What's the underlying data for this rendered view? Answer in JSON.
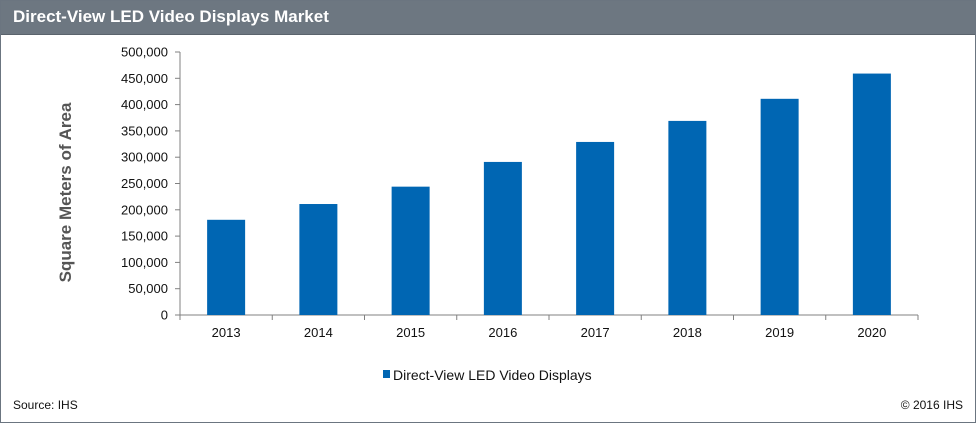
{
  "header": {
    "title": "Direct-View LED Video Displays Market"
  },
  "footer": {
    "source": "Source: IHS",
    "copyright": "© 2016 IHS"
  },
  "colors": {
    "bar": "#0066b3",
    "title_bar": "#6d7781"
  },
  "chart_data": {
    "type": "bar",
    "title": "Direct-View LED Video Displays Market",
    "xlabel": "",
    "ylabel": "Square Meters of Area",
    "categories": [
      "2013",
      "2014",
      "2015",
      "2016",
      "2017",
      "2018",
      "2019",
      "2020"
    ],
    "series": [
      {
        "name": "Direct-View LED Video Displays",
        "values": [
          181000,
          211000,
          244000,
          291000,
          329000,
          369000,
          411000,
          459000
        ]
      }
    ],
    "ylim": [
      0,
      500000
    ],
    "yticks": [
      "0",
      "50,000",
      "100,000",
      "150,000",
      "200,000",
      "250,000",
      "300,000",
      "350,000",
      "400,000",
      "450,000",
      "500,000"
    ],
    "grid": false,
    "legend_position": "bottom"
  }
}
